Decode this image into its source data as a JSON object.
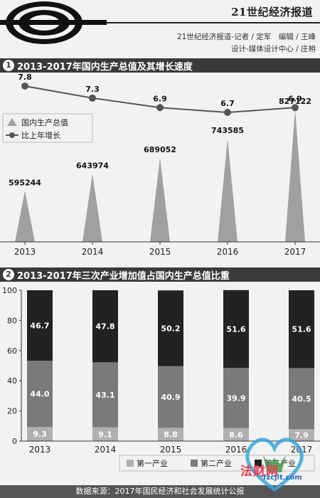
{
  "header": {
    "brand": "21世纪经济报道",
    "credits_line1": "21世纪经济报道-记者 / 定军　编辑 / 王峰",
    "credits_line2": "设计-媒体设计中心 / 庄枏"
  },
  "section1": {
    "number": "1",
    "title": "2013-2017年国内生产总值及其增长速度"
  },
  "section2": {
    "number": "2",
    "title": "2013-2017年三次产业增加值占国内生产总值比重"
  },
  "footer": {
    "source": "数据来源：2017年国民经济和社会发展统计公报"
  },
  "watermark": {
    "text": "法财网",
    "url": "fzcjlt.com"
  },
  "colors": {
    "triangle": "#a0a0a0",
    "line": "#555555",
    "primary": "#b0b0b0",
    "secondary": "#7a7a7a",
    "tertiary": "#222222",
    "bar_header": "#3a3a3a"
  },
  "chart_data": [
    {
      "type": "bar",
      "categories": [
        "2013",
        "2014",
        "2015",
        "2016",
        "2017"
      ],
      "series": [
        {
          "name": "国内生产总值",
          "values": [
            595244,
            643974,
            689052,
            743585,
            827122
          ],
          "style": "triangle"
        },
        {
          "name": "比上年增长",
          "values": [
            7.8,
            7.3,
            6.9,
            6.7,
            6.9
          ],
          "style": "line"
        }
      ],
      "legend": "left"
    },
    {
      "type": "bar",
      "stacked": true,
      "categories": [
        "2013",
        "2014",
        "2015",
        "2016",
        "2017"
      ],
      "ylim": [
        0,
        100
      ],
      "yticks": [
        0,
        20,
        40,
        60,
        80,
        100
      ],
      "series": [
        {
          "name": "第一产业",
          "values": [
            9.3,
            9.1,
            8.8,
            8.6,
            7.9
          ]
        },
        {
          "name": "第二产业",
          "values": [
            44.0,
            43.1,
            40.9,
            39.9,
            40.5
          ]
        },
        {
          "name": "第三产业",
          "values": [
            46.7,
            47.8,
            50.2,
            51.6,
            51.6
          ]
        }
      ],
      "legend": "bottom"
    }
  ]
}
